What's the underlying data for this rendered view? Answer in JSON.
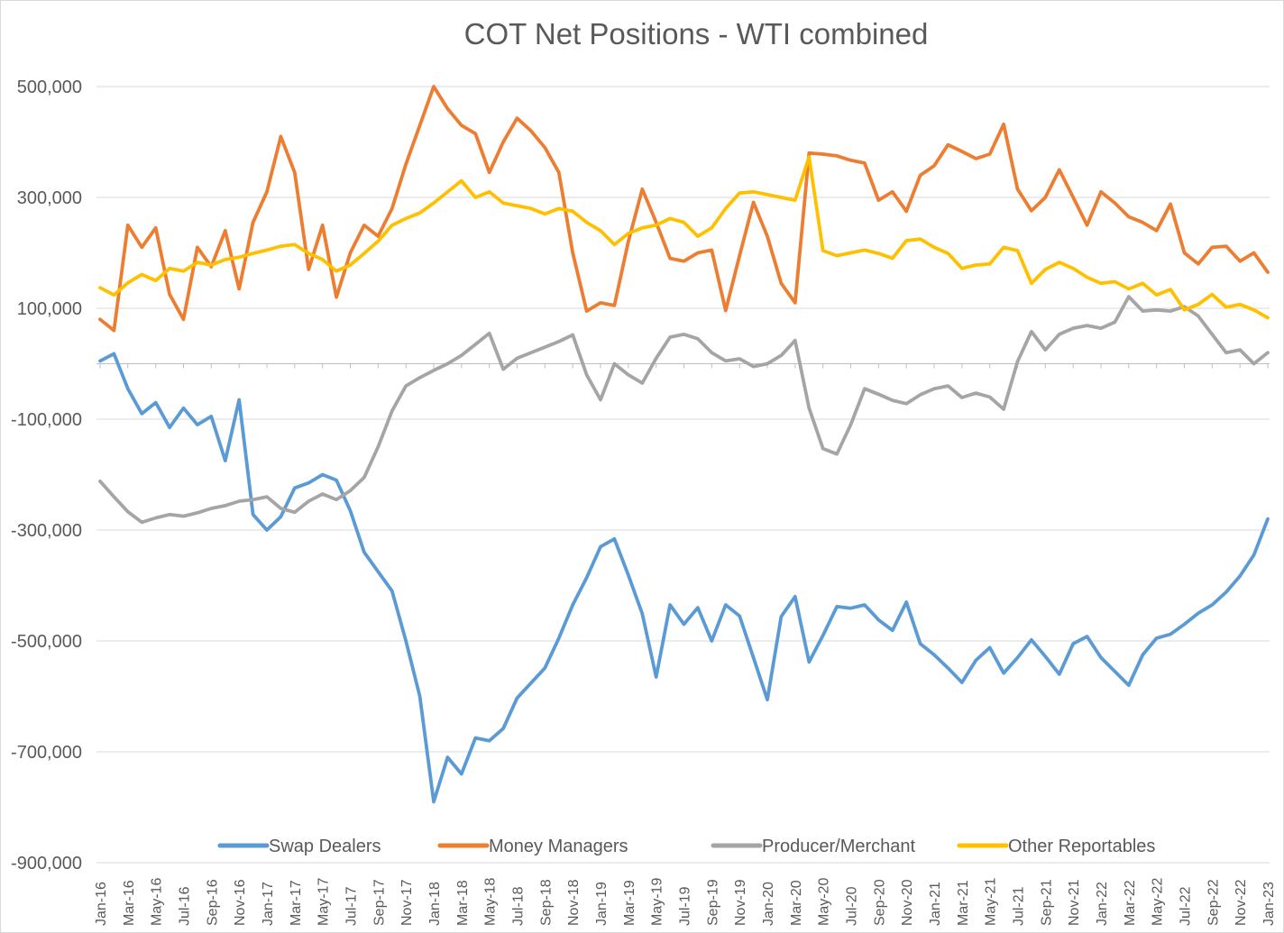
{
  "chart_data": {
    "type": "line",
    "title": "COT Net Positions - WTI combined",
    "xlabel": "",
    "ylabel": "",
    "ylim": [
      -900000,
      500000
    ],
    "y_tick_step": 200000,
    "grid": "horizontal",
    "legend_position": "bottom",
    "y_axis": {
      "tick_labels": [
        "500,000",
        "300,000",
        "100,000",
        "-100,000",
        "-300,000",
        "-500,000",
        "-700,000",
        "-900,000"
      ],
      "tick_values": [
        500000,
        300000,
        100000,
        -100000,
        -300000,
        -500000,
        -700000,
        -900000
      ]
    },
    "x_tick_labels": [
      "Jan-16",
      "Mar-16",
      "May-16",
      "Jul-16",
      "Sep-16",
      "Nov-16",
      "Jan-17",
      "Mar-17",
      "May-17",
      "Jul-17",
      "Sep-17",
      "Nov-17",
      "Jan-18",
      "Mar-18",
      "May-18",
      "Jul-18",
      "Sep-18",
      "Nov-18",
      "Jan-19",
      "Mar-19",
      "May-19",
      "Jul-19",
      "Sep-19",
      "Nov-19",
      "Jan-20",
      "Mar-20",
      "May-20",
      "Jul-20",
      "Sep-20",
      "Nov-20",
      "Jan-21",
      "Mar-21",
      "May-21",
      "Jul-21",
      "Sep-21",
      "Nov-21",
      "Jan-22",
      "Mar-22",
      "May-22",
      "Jul-22",
      "Sep-22",
      "Nov-22",
      "Jan-23"
    ],
    "categories": [
      "Jan-16",
      "Feb-16",
      "Mar-16",
      "Apr-16",
      "May-16",
      "Jun-16",
      "Jul-16",
      "Aug-16",
      "Sep-16",
      "Oct-16",
      "Nov-16",
      "Dec-16",
      "Jan-17",
      "Feb-17",
      "Mar-17",
      "Apr-17",
      "May-17",
      "Jun-17",
      "Jul-17",
      "Aug-17",
      "Sep-17",
      "Oct-17",
      "Nov-17",
      "Dec-17",
      "Jan-18",
      "Feb-18",
      "Mar-18",
      "Apr-18",
      "May-18",
      "Jun-18",
      "Jul-18",
      "Aug-18",
      "Sep-18",
      "Oct-18",
      "Nov-18",
      "Dec-18",
      "Jan-19",
      "Feb-19",
      "Mar-19",
      "Apr-19",
      "May-19",
      "Jun-19",
      "Jul-19",
      "Aug-19",
      "Sep-19",
      "Oct-19",
      "Nov-19",
      "Dec-19",
      "Jan-20",
      "Feb-20",
      "Mar-20",
      "Apr-20",
      "May-20",
      "Jun-20",
      "Jul-20",
      "Aug-20",
      "Sep-20",
      "Oct-20",
      "Nov-20",
      "Dec-20",
      "Jan-21",
      "Feb-21",
      "Mar-21",
      "Apr-21",
      "May-21",
      "Jun-21",
      "Jul-21",
      "Aug-21",
      "Sep-21",
      "Oct-21",
      "Nov-21",
      "Dec-21",
      "Jan-22",
      "Feb-22",
      "Mar-22",
      "Apr-22",
      "May-22",
      "Jun-22",
      "Jul-22",
      "Aug-22",
      "Sep-22",
      "Oct-22",
      "Nov-22",
      "Dec-22",
      "Jan-23"
    ],
    "series": [
      {
        "name": "Swap Dealers",
        "color": "#5B9BD5",
        "values": [
          5000,
          18000,
          -45000,
          -90000,
          -70000,
          -115000,
          -80000,
          -110000,
          -95000,
          -175000,
          -65000,
          -272000,
          -300000,
          -276000,
          -224000,
          -215000,
          -200000,
          -210000,
          -265000,
          -340000,
          -375000,
          -410000,
          -500000,
          -600000,
          -790000,
          -710000,
          -740000,
          -675000,
          -680000,
          -658000,
          -603000,
          -576000,
          -549000,
          -495000,
          -435000,
          -386000,
          -330000,
          -316000,
          -381000,
          -451000,
          -565000,
          -435000,
          -470000,
          -440000,
          -500000,
          -435000,
          -455000,
          -530000,
          -606000,
          -456000,
          -420000,
          -538000,
          -490000,
          -438000,
          -441000,
          -435000,
          -462000,
          -481000,
          -430000,
          -505000,
          -525000,
          -549000,
          -575000,
          -535000,
          -512000,
          -558000,
          -530000,
          -498000,
          -528000,
          -560000,
          -505000,
          -492000,
          -530000,
          -555000,
          -580000,
          -525000,
          -495000,
          -488000,
          -470000,
          -450000,
          -435000,
          -412000,
          -383000,
          -345000,
          -280000
        ]
      },
      {
        "name": "Money Managers",
        "color": "#ED7D31",
        "values": [
          80000,
          60000,
          250000,
          210000,
          245000,
          125000,
          80000,
          210000,
          175000,
          240000,
          135000,
          255000,
          310000,
          410000,
          345000,
          170000,
          250000,
          120000,
          200000,
          250000,
          230000,
          280000,
          360000,
          430000,
          500000,
          460000,
          430000,
          415000,
          345000,
          400000,
          443000,
          420000,
          390000,
          345000,
          200000,
          95000,
          110000,
          105000,
          220000,
          315000,
          255000,
          190000,
          185000,
          200000,
          205000,
          96000,
          195000,
          291000,
          230000,
          145000,
          110000,
          380000,
          378000,
          375000,
          367000,
          362000,
          295000,
          310000,
          275000,
          340000,
          357000,
          395000,
          383000,
          370000,
          378000,
          432000,
          315000,
          276000,
          300000,
          350000,
          300000,
          250000,
          310000,
          290000,
          265000,
          255000,
          240000,
          288000,
          200000,
          180000,
          210000,
          212000,
          185000,
          200000,
          165000
        ]
      },
      {
        "name": "Producer/Merchant",
        "color": "#A5A5A5",
        "values": [
          -212000,
          -240000,
          -267000,
          -286000,
          -278000,
          -272000,
          -275000,
          -269000,
          -261000,
          -256000,
          -248000,
          -245000,
          -240000,
          -261000,
          -268000,
          -248000,
          -235000,
          -245000,
          -229000,
          -205000,
          -150000,
          -85000,
          -40000,
          -25000,
          -12000,
          0,
          15000,
          35000,
          55000,
          -10000,
          10000,
          20000,
          30000,
          40000,
          52000,
          -20000,
          -65000,
          0,
          -20000,
          -35000,
          10000,
          48000,
          53000,
          45000,
          20000,
          5000,
          9000,
          -5000,
          0,
          15000,
          42000,
          -80000,
          -153000,
          -163000,
          -110000,
          -45000,
          -55000,
          -66000,
          -72000,
          -56000,
          -45000,
          -40000,
          -61000,
          -53000,
          -60000,
          -82000,
          4000,
          58000,
          25000,
          53000,
          64000,
          69000,
          64000,
          75000,
          121000,
          95000,
          97000,
          95000,
          103000,
          86000,
          53000,
          20000,
          25000,
          0,
          20000
        ]
      },
      {
        "name": "Other Reportables",
        "color": "#FFC000",
        "values": [
          137000,
          124000,
          146000,
          161000,
          150000,
          172000,
          167000,
          183000,
          178000,
          188000,
          192000,
          199000,
          205000,
          212000,
          215000,
          199000,
          188000,
          167000,
          178000,
          199000,
          221000,
          250000,
          262000,
          272000,
          290000,
          310000,
          330000,
          300000,
          310000,
          290000,
          285000,
          280000,
          270000,
          280000,
          275000,
          255000,
          240000,
          215000,
          235000,
          245000,
          250000,
          262000,
          255000,
          230000,
          245000,
          280000,
          308000,
          310000,
          305000,
          300000,
          295000,
          373000,
          204000,
          195000,
          200000,
          205000,
          199000,
          190000,
          222000,
          225000,
          210000,
          199000,
          172000,
          178000,
          180000,
          210000,
          204000,
          145000,
          170000,
          183000,
          172000,
          156000,
          145000,
          148000,
          135000,
          145000,
          124000,
          134000,
          97000,
          107000,
          125000,
          102000,
          107000,
          97000,
          83000
        ]
      }
    ]
  },
  "colors": {
    "gridline": "#D9D9D9",
    "axis_line": "#BFBFBF",
    "tick_mark": "#BFBFBF",
    "label_text": "#595959",
    "frame_border": "#D9D9D9"
  }
}
